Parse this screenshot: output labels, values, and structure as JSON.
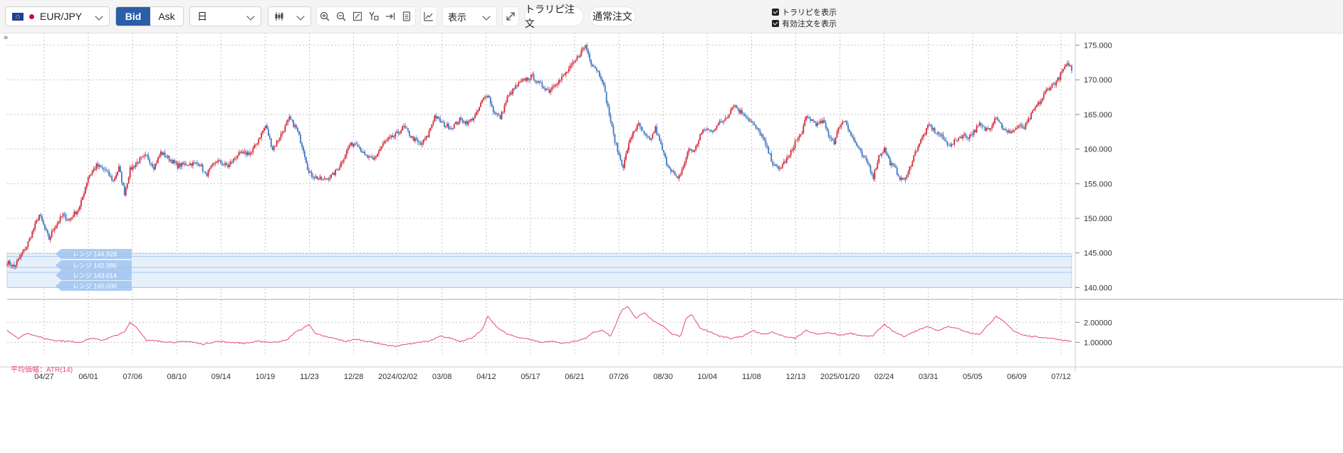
{
  "toolbar": {
    "symbol": "EUR/JPY",
    "bid_label": "Bid",
    "ask_label": "Ask",
    "period": "日",
    "display_label": "表示",
    "trail_button": "トラリピ注文",
    "normal_button": "通常注文",
    "show_trailing": "トラリピを表示",
    "show_orders": "有効注文を表示"
  },
  "colors": {
    "bid_active": "#2c5ea8",
    "candle_up": "#d22a3b",
    "candle_down": "#3f78c3",
    "atr_line": "#e8458c",
    "range_band": "#e6f0fb",
    "range_label": "#9fc3ef"
  },
  "icons": [
    "candlestick-icon",
    "zoom-in-icon",
    "zoom-out-icon",
    "fit-icon",
    "text-tool-icon",
    "scroll-end-icon",
    "document-icon",
    "indicator-icon",
    "expand-icon",
    "collapse-panel-icon"
  ],
  "chart_data": [
    {
      "type": "candlestick",
      "y_ticks": [
        "175.000",
        "170.000",
        "165.000",
        "160.000",
        "155.000",
        "150.000",
        "145.000",
        "140.000"
      ],
      "ylim": [
        138.5,
        176.8
      ],
      "x_tick_labels": [
        "04/27",
        "06/01",
        "07/06",
        "08/10",
        "09/14",
        "10/19",
        "11/23",
        "12/28",
        "2024/02/02",
        "03/08",
        "04/12",
        "05/17",
        "06/21",
        "07/26",
        "08/30",
        "10/04",
        "11/08",
        "12/13",
        "2025/01/20",
        "02/24",
        "03/31",
        "05/05",
        "06/09",
        "07/12"
      ],
      "grid": true,
      "band_range": [
        140.0,
        144.9
      ],
      "range_lines": [
        {
          "label": "レンジ 144.928"
        },
        {
          "label": "レンジ 142.986"
        },
        {
          "label": "レンジ 143.014"
        },
        {
          "label": "レンジ 140.000"
        }
      ],
      "anchors": [
        [
          0,
          143.7
        ],
        [
          5,
          143.0
        ],
        [
          14,
          146.0
        ],
        [
          23,
          150.5
        ],
        [
          30,
          147.0
        ],
        [
          34,
          148.8
        ],
        [
          40,
          150.5
        ],
        [
          44,
          149.7
        ],
        [
          52,
          151.6
        ],
        [
          58,
          156.0
        ],
        [
          64,
          157.6
        ],
        [
          70,
          157.0
        ],
        [
          76,
          155.4
        ],
        [
          80,
          157.3
        ],
        [
          84,
          153.6
        ],
        [
          88,
          157.0
        ],
        [
          95,
          158.5
        ],
        [
          100,
          159.0
        ],
        [
          105,
          157.4
        ],
        [
          110,
          159.5
        ],
        [
          116,
          158.6
        ],
        [
          122,
          157.6
        ],
        [
          130,
          157.9
        ],
        [
          138,
          157.9
        ],
        [
          142,
          156.2
        ],
        [
          150,
          158.3
        ],
        [
          158,
          157.5
        ],
        [
          165,
          159.2
        ],
        [
          175,
          159.5
        ],
        [
          185,
          163.4
        ],
        [
          190,
          160.0
        ],
        [
          198,
          162.8
        ],
        [
          202,
          164.4
        ],
        [
          207,
          163.0
        ],
        [
          212,
          160.0
        ],
        [
          216,
          156.5
        ],
        [
          220,
          156.0
        ],
        [
          226,
          155.5
        ],
        [
          233,
          156.2
        ],
        [
          238,
          157.6
        ],
        [
          245,
          160.5
        ],
        [
          250,
          161.0
        ],
        [
          256,
          159.0
        ],
        [
          262,
          158.4
        ],
        [
          270,
          161.0
        ],
        [
          278,
          162.0
        ],
        [
          284,
          163.2
        ],
        [
          290,
          161.6
        ],
        [
          296,
          160.6
        ],
        [
          301,
          161.9
        ],
        [
          306,
          164.8
        ],
        [
          312,
          163.6
        ],
        [
          318,
          163.1
        ],
        [
          324,
          164.2
        ],
        [
          330,
          163.8
        ],
        [
          336,
          165.0
        ],
        [
          340,
          167.0
        ],
        [
          344,
          168.0
        ],
        [
          348,
          165.5
        ],
        [
          353,
          164.5
        ],
        [
          358,
          167.4
        ],
        [
          364,
          169.0
        ],
        [
          370,
          170.0
        ],
        [
          376,
          170.5
        ],
        [
          380,
          169.5
        ],
        [
          384,
          169.0
        ],
        [
          388,
          168.4
        ],
        [
          392,
          169.5
        ],
        [
          396,
          170.0
        ],
        [
          402,
          171.5
        ],
        [
          406,
          172.5
        ],
        [
          410,
          173.8
        ],
        [
          414,
          175.0
        ],
        [
          418,
          172.5
        ],
        [
          422,
          171.5
        ],
        [
          426,
          170.0
        ],
        [
          430,
          166.0
        ],
        [
          434,
          162.0
        ],
        [
          438,
          159.0
        ],
        [
          441,
          157.5
        ],
        [
          444,
          160.0
        ],
        [
          448,
          162.5
        ],
        [
          452,
          163.5
        ],
        [
          456,
          162.0
        ],
        [
          460,
          161.2
        ],
        [
          464,
          163.0
        ],
        [
          468,
          160.5
        ],
        [
          472,
          158.0
        ],
        [
          476,
          156.8
        ],
        [
          480,
          155.5
        ],
        [
          484,
          157.5
        ],
        [
          488,
          160.0
        ],
        [
          492,
          159.7
        ],
        [
          496,
          162.0
        ],
        [
          500,
          163.0
        ],
        [
          504,
          162.5
        ],
        [
          508,
          163.5
        ],
        [
          512,
          164.0
        ],
        [
          516,
          165.0
        ],
        [
          520,
          166.5
        ],
        [
          524,
          165.5
        ],
        [
          528,
          165.0
        ],
        [
          532,
          164.0
        ],
        [
          536,
          163.0
        ],
        [
          540,
          162.0
        ],
        [
          544,
          160.0
        ],
        [
          548,
          158.0
        ],
        [
          552,
          157.0
        ],
        [
          556,
          158.0
        ],
        [
          560,
          159.0
        ],
        [
          564,
          161.0
        ],
        [
          568,
          162.0
        ],
        [
          572,
          164.5
        ],
        [
          576,
          164.2
        ],
        [
          580,
          163.5
        ],
        [
          584,
          164.0
        ],
        [
          588,
          162.0
        ],
        [
          592,
          161.0
        ],
        [
          596,
          163.5
        ],
        [
          600,
          164.2
        ],
        [
          604,
          162.0
        ],
        [
          608,
          160.5
        ],
        [
          612,
          159.0
        ],
        [
          616,
          158.0
        ],
        [
          620,
          156.0
        ],
        [
          624,
          159.0
        ],
        [
          628,
          160.0
        ],
        [
          632,
          158.0
        ],
        [
          636,
          157.0
        ],
        [
          640,
          155.5
        ],
        [
          644,
          156.0
        ],
        [
          648,
          158.5
        ],
        [
          652,
          160.5
        ],
        [
          656,
          162.0
        ],
        [
          660,
          163.5
        ],
        [
          664,
          162.5
        ],
        [
          668,
          162.0
        ],
        [
          672,
          161.0
        ],
        [
          676,
          160.5
        ],
        [
          680,
          161.5
        ],
        [
          684,
          162.0
        ],
        [
          688,
          161.8
        ],
        [
          692,
          162.5
        ],
        [
          696,
          163.5
        ],
        [
          700,
          162.8
        ],
        [
          704,
          163.3
        ],
        [
          708,
          164.8
        ],
        [
          712,
          163.2
        ],
        [
          716,
          162.3
        ],
        [
          720,
          162.7
        ],
        [
          724,
          163.3
        ],
        [
          728,
          163.0
        ],
        [
          732,
          164.5
        ],
        [
          736,
          166.0
        ],
        [
          740,
          167.0
        ],
        [
          744,
          168.5
        ],
        [
          748,
          169.2
        ],
        [
          752,
          170.0
        ],
        [
          756,
          171.5
        ],
        [
          760,
          172.3
        ],
        [
          762,
          171.4
        ]
      ]
    },
    {
      "type": "line",
      "title": "平均価幅：ATR(14)",
      "y_ticks": [
        "2.00000",
        "1.00000"
      ],
      "ylim": [
        0.3,
        3.15
      ],
      "anchors": [
        [
          0,
          1.6
        ],
        [
          8,
          1.2
        ],
        [
          14,
          1.45
        ],
        [
          20,
          1.35
        ],
        [
          26,
          1.2
        ],
        [
          34,
          1.1
        ],
        [
          44,
          1.05
        ],
        [
          52,
          1.0
        ],
        [
          60,
          1.2
        ],
        [
          68,
          1.1
        ],
        [
          76,
          1.3
        ],
        [
          84,
          1.5
        ],
        [
          88,
          2.0
        ],
        [
          92,
          1.8
        ],
        [
          100,
          1.1
        ],
        [
          110,
          1.05
        ],
        [
          120,
          1.0
        ],
        [
          130,
          1.05
        ],
        [
          140,
          0.9
        ],
        [
          150,
          1.05
        ],
        [
          160,
          1.0
        ],
        [
          170,
          0.95
        ],
        [
          180,
          1.05
        ],
        [
          190,
          1.0
        ],
        [
          200,
          1.1
        ],
        [
          206,
          1.5
        ],
        [
          212,
          1.7
        ],
        [
          216,
          1.9
        ],
        [
          220,
          1.5
        ],
        [
          226,
          1.3
        ],
        [
          234,
          1.2
        ],
        [
          242,
          1.05
        ],
        [
          250,
          1.15
        ],
        [
          258,
          1.05
        ],
        [
          266,
          0.95
        ],
        [
          272,
          0.85
        ],
        [
          278,
          0.8
        ],
        [
          286,
          0.9
        ],
        [
          294,
          1.0
        ],
        [
          302,
          1.05
        ],
        [
          310,
          1.3
        ],
        [
          318,
          1.2
        ],
        [
          324,
          1.05
        ],
        [
          332,
          1.2
        ],
        [
          340,
          1.6
        ],
        [
          344,
          2.3
        ],
        [
          350,
          1.8
        ],
        [
          358,
          1.4
        ],
        [
          366,
          1.25
        ],
        [
          374,
          1.15
        ],
        [
          382,
          1.0
        ],
        [
          390,
          1.05
        ],
        [
          398,
          0.95
        ],
        [
          406,
          1.05
        ],
        [
          414,
          1.2
        ],
        [
          420,
          1.5
        ],
        [
          426,
          1.6
        ],
        [
          432,
          1.3
        ],
        [
          440,
          2.6
        ],
        [
          444,
          2.8
        ],
        [
          450,
          2.2
        ],
        [
          456,
          2.5
        ],
        [
          462,
          2.1
        ],
        [
          470,
          1.8
        ],
        [
          476,
          1.4
        ],
        [
          482,
          1.3
        ],
        [
          486,
          2.2
        ],
        [
          490,
          2.4
        ],
        [
          496,
          1.7
        ],
        [
          504,
          1.5
        ],
        [
          510,
          1.3
        ],
        [
          518,
          1.2
        ],
        [
          526,
          1.3
        ],
        [
          534,
          1.6
        ],
        [
          540,
          1.4
        ],
        [
          548,
          1.5
        ],
        [
          556,
          1.3
        ],
        [
          564,
          1.2
        ],
        [
          572,
          1.6
        ],
        [
          580,
          1.4
        ],
        [
          588,
          1.5
        ],
        [
          596,
          1.35
        ],
        [
          604,
          1.45
        ],
        [
          612,
          1.3
        ],
        [
          620,
          1.35
        ],
        [
          628,
          1.9
        ],
        [
          634,
          1.55
        ],
        [
          642,
          1.3
        ],
        [
          650,
          1.55
        ],
        [
          658,
          1.8
        ],
        [
          666,
          1.6
        ],
        [
          674,
          1.8
        ],
        [
          682,
          1.65
        ],
        [
          690,
          1.45
        ],
        [
          696,
          1.4
        ],
        [
          702,
          1.85
        ],
        [
          708,
          2.3
        ],
        [
          714,
          2.0
        ],
        [
          720,
          1.6
        ],
        [
          726,
          1.4
        ],
        [
          732,
          1.3
        ],
        [
          740,
          1.25
        ],
        [
          748,
          1.2
        ],
        [
          756,
          1.1
        ],
        [
          762,
          1.05
        ]
      ]
    }
  ]
}
